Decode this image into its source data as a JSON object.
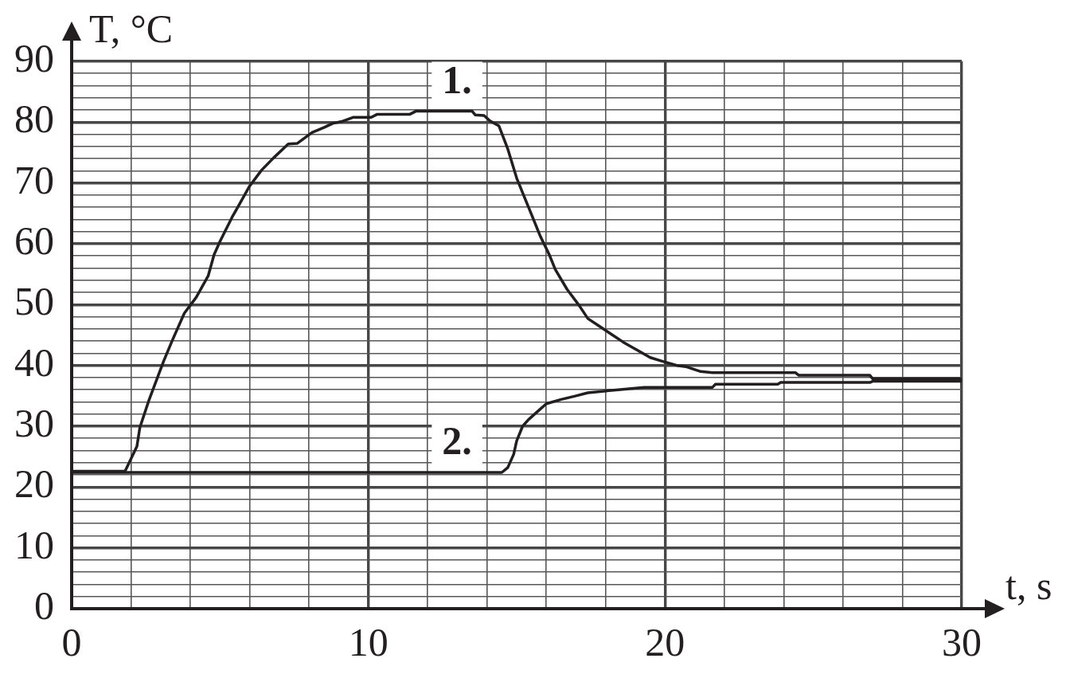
{
  "chart_data": {
    "type": "line",
    "xlabel": "t, s",
    "ylabel": "T, °C",
    "xlim": [
      0,
      30
    ],
    "ylim": [
      0,
      90
    ],
    "xticks": [
      0,
      {
        "value": 2,
        "label": null
      },
      {
        "value": 4,
        "label": null
      },
      {
        "value": 6,
        "label": null
      },
      {
        "value": 8,
        "label": null
      },
      10,
      {
        "value": 12,
        "label": null
      },
      {
        "value": 14,
        "label": null
      },
      {
        "value": 16,
        "label": null
      },
      {
        "value": 18,
        "label": null
      },
      20,
      {
        "value": 22,
        "label": null
      },
      {
        "value": 24,
        "label": null
      },
      {
        "value": 26,
        "label": null
      },
      {
        "value": 28,
        "label": null
      },
      30
    ],
    "yticks": [
      0,
      {
        "value": 2,
        "label": null
      },
      {
        "value": 4,
        "label": null
      },
      {
        "value": 6,
        "label": null
      },
      {
        "value": 8,
        "label": null
      },
      10,
      {
        "value": 12,
        "label": null
      },
      {
        "value": 14,
        "label": null
      },
      {
        "value": 16,
        "label": null
      },
      {
        "value": 18,
        "label": null
      },
      20,
      {
        "value": 22,
        "label": null
      },
      {
        "value": 24,
        "label": null
      },
      {
        "value": 26,
        "label": null
      },
      {
        "value": 28,
        "label": null
      },
      30,
      {
        "value": 32,
        "label": null
      },
      {
        "value": 34,
        "label": null
      },
      {
        "value": 36,
        "label": null
      },
      {
        "value": 38,
        "label": null
      },
      40,
      {
        "value": 42,
        "label": null
      },
      {
        "value": 44,
        "label": null
      },
      {
        "value": 46,
        "label": null
      },
      {
        "value": 48,
        "label": null
      },
      50,
      {
        "value": 52,
        "label": null
      },
      {
        "value": 54,
        "label": null
      },
      {
        "value": 56,
        "label": null
      },
      {
        "value": 58,
        "label": null
      },
      60,
      {
        "value": 62,
        "label": null
      },
      {
        "value": 64,
        "label": null
      },
      {
        "value": 66,
        "label": null
      },
      {
        "value": 68,
        "label": null
      },
      70,
      {
        "value": 72,
        "label": null
      },
      {
        "value": 74,
        "label": null
      },
      {
        "value": 76,
        "label": null
      },
      {
        "value": 78,
        "label": null
      },
      80,
      {
        "value": 82,
        "label": null
      },
      {
        "value": 84,
        "label": null
      },
      {
        "value": 86,
        "label": null
      },
      {
        "value": 88,
        "label": null
      },
      90
    ],
    "grid": true,
    "series": [
      {
        "name": "1.",
        "color": "#231f20",
        "x": [
          0,
          1.8,
          2.2,
          2.3,
          2.6,
          3.1,
          3.4,
          3.8,
          4.0,
          4.2,
          4.6,
          4.8,
          5.0,
          5.4,
          5.7,
          6.0,
          6.4,
          6.8,
          7.3,
          7.6,
          8.1,
          8.5,
          8.8,
          9.1,
          9.5,
          10.1,
          10.3,
          11.4,
          11.6,
          13.5,
          13.6,
          13.9,
          14.1,
          14.4,
          14.7,
          15.0,
          15.4,
          15.8,
          16.1,
          16.3,
          16.7,
          17.1,
          17.4,
          17.8,
          18.2,
          18.6,
          19.1,
          19.5,
          19.9,
          20.4,
          20.7,
          21.2,
          21.6,
          24.4,
          24.5,
          26.9,
          27.0,
          30
        ],
        "values": [
          22.6,
          22.6,
          26.7,
          29.8,
          34.2,
          40.7,
          44.2,
          48.6,
          49.9,
          51.2,
          54.7,
          58.2,
          60.4,
          64.3,
          66.9,
          69.5,
          72.1,
          74.1,
          76.4,
          76.5,
          78.3,
          79.1,
          79.8,
          80.1,
          80.8,
          80.8,
          81.3,
          81.3,
          81.8,
          81.8,
          81.2,
          81.1,
          80.2,
          79.4,
          75.6,
          70.8,
          66.0,
          61.2,
          58.2,
          55.8,
          52.5,
          49.9,
          47.7,
          46.4,
          45.1,
          43.8,
          42.4,
          41.3,
          40.7,
          40.0,
          39.8,
          39.0,
          38.8,
          38.8,
          38.4,
          38.4,
          37.8,
          37.8
        ]
      },
      {
        "name": "2.",
        "color": "#231f20",
        "x": [
          0,
          14.5,
          14.7,
          14.9,
          15.0,
          15.2,
          15.4,
          15.7,
          16.0,
          16.5,
          17.0,
          17.4,
          18.2,
          19.3,
          21.6,
          21.7,
          23.8,
          23.9,
          26.9,
          27.0,
          30
        ],
        "values": [
          22.4,
          22.4,
          23.2,
          25.4,
          27.6,
          30.0,
          31.1,
          32.4,
          33.7,
          34.4,
          35.0,
          35.5,
          35.9,
          36.4,
          36.4,
          36.9,
          36.9,
          37.2,
          37.2,
          37.4,
          37.4
        ]
      }
    ]
  }
}
